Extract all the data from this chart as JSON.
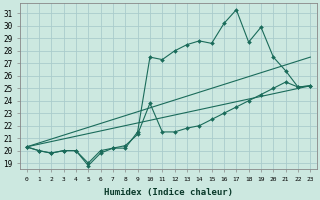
{
  "title": "",
  "xlabel": "Humidex (Indice chaleur)",
  "background_color": "#cce8e0",
  "grid_color": "#aacccc",
  "line_color": "#1a6b5a",
  "xlim": [
    -0.5,
    23.5
  ],
  "ylim": [
    18.5,
    31.8
  ],
  "xticks": [
    0,
    1,
    2,
    3,
    4,
    5,
    6,
    7,
    8,
    9,
    10,
    11,
    12,
    13,
    14,
    15,
    16,
    17,
    18,
    19,
    20,
    21,
    22,
    23
  ],
  "yticks": [
    19,
    20,
    21,
    22,
    23,
    24,
    25,
    26,
    27,
    28,
    29,
    30,
    31
  ],
  "series": [
    {
      "x": [
        0,
        1,
        2,
        3,
        4,
        5,
        6,
        7,
        8,
        9,
        10,
        11,
        12,
        13,
        14,
        15,
        16,
        17,
        18,
        19,
        20,
        21,
        22,
        23
      ],
      "y": [
        20.3,
        20.0,
        19.8,
        20.0,
        20.0,
        18.8,
        19.8,
        20.2,
        20.2,
        21.5,
        27.5,
        27.3,
        28.0,
        28.5,
        28.8,
        28.6,
        30.2,
        31.3,
        28.7,
        29.9,
        27.5,
        26.4,
        25.1,
        25.2
      ],
      "has_markers": true
    },
    {
      "x": [
        0,
        1,
        2,
        3,
        4,
        5,
        6,
        7,
        8,
        9,
        10,
        11,
        12,
        13,
        14,
        15,
        16,
        17,
        18,
        19,
        20,
        21,
        22,
        23
      ],
      "y": [
        20.3,
        20.0,
        19.8,
        20.0,
        20.0,
        19.0,
        20.0,
        20.2,
        20.4,
        21.3,
        23.8,
        21.5,
        21.5,
        21.8,
        22.0,
        22.5,
        23.0,
        23.5,
        24.0,
        24.5,
        25.0,
        25.5,
        25.1,
        25.2
      ],
      "has_markers": true
    },
    {
      "x": [
        0,
        23
      ],
      "y": [
        20.3,
        25.2
      ],
      "has_markers": false
    },
    {
      "x": [
        0,
        23
      ],
      "y": [
        20.3,
        27.5
      ],
      "has_markers": false
    }
  ]
}
